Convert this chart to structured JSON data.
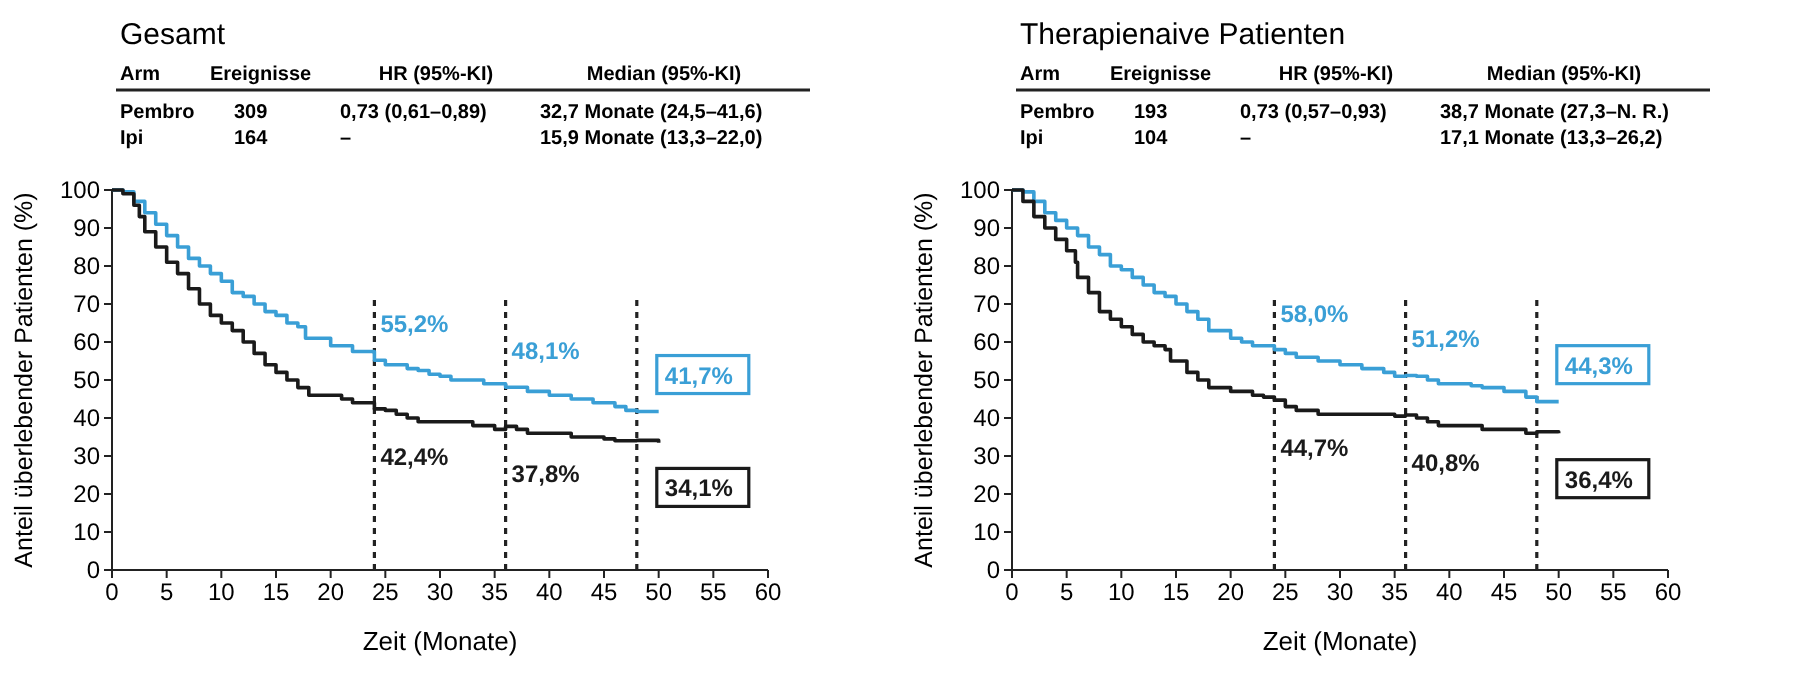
{
  "chart_data": [
    {
      "type": "step",
      "title": "Gesamt",
      "xlabel": "Zeit (Monate)",
      "ylabel": "Anteil überlebender Patienten (%)",
      "xlim": [
        0,
        60
      ],
      "xticks": [
        0,
        5,
        10,
        15,
        20,
        25,
        30,
        35,
        40,
        45,
        50,
        55,
        60
      ],
      "ylim": [
        0,
        100
      ],
      "yticks": [
        0,
        10,
        20,
        30,
        40,
        50,
        60,
        70,
        80,
        90,
        100
      ],
      "grid": false,
      "marker": "none",
      "line_style": "solid",
      "series": [
        {
          "color": "#3a9fd6",
          "x": [
            0,
            1,
            2,
            3,
            4,
            5,
            6,
            7,
            8,
            9,
            10,
            11,
            12,
            13,
            14,
            15,
            16,
            17,
            17.7,
            18,
            20,
            22,
            24,
            25,
            27,
            28,
            29,
            30,
            31,
            33,
            34,
            35,
            36,
            38,
            40,
            42,
            44,
            46,
            47,
            48,
            50
          ],
          "values": [
            100,
            99.5,
            97,
            94,
            91,
            88,
            85,
            82,
            80,
            78,
            76,
            73,
            72,
            70,
            68,
            67,
            65,
            64,
            61,
            61,
            59,
            57.5,
            55.2,
            54,
            53,
            52.5,
            51.5,
            51,
            50,
            50,
            49,
            49,
            48.1,
            47,
            46,
            45,
            44,
            43,
            42,
            41.7,
            41.7
          ]
        },
        {
          "color": "#1a1a1a",
          "x": [
            0,
            1,
            2,
            2.5,
            3,
            4,
            5,
            6,
            7,
            8,
            9,
            10,
            11,
            12,
            13,
            14,
            15,
            16,
            17,
            18,
            20,
            21,
            22,
            24,
            25,
            26,
            27,
            28,
            30,
            32,
            33,
            35,
            36,
            37,
            38,
            40,
            42,
            43,
            45,
            46,
            48,
            50
          ],
          "values": [
            100,
            99,
            96,
            93,
            89,
            85,
            81,
            78,
            74,
            70,
            67,
            65,
            63,
            60,
            57,
            54,
            52,
            50,
            48,
            46,
            46,
            45,
            44,
            42.4,
            42,
            41,
            40,
            39,
            39,
            39,
            38,
            37,
            37.8,
            37,
            36,
            36,
            35,
            35,
            34.5,
            34,
            34.1,
            33.5
          ]
        }
      ],
      "ref_lines": [
        {
          "axis": "x",
          "value": 24,
          "line_style": "dotted"
        },
        {
          "axis": "x",
          "value": 36,
          "line_style": "dotted"
        },
        {
          "axis": "x",
          "value": 48,
          "line_style": "dotted"
        }
      ],
      "annotations": [
        "Arm",
        "Ereignisse",
        "HR (95%-KI)",
        "Median (95%-KI)",
        "Pembro",
        "309",
        "0,73 (0,61–0,89)",
        "32,7 Monate (24,5–41,6)",
        "Ipi",
        "164",
        "–",
        "15,9 Monate (13,3–22,0)",
        {
          "text": "55,2%",
          "x": 24,
          "y": 55.2
        },
        {
          "text": "42,4%",
          "x": 24,
          "y": 42.4
        },
        {
          "text": "48,1%",
          "x": 36,
          "y": 48.1
        },
        {
          "text": "37,8%",
          "x": 36,
          "y": 37.8
        },
        {
          "text": "41,7%",
          "x": 48,
          "y": 41.7
        },
        {
          "text": "34,1%",
          "x": 48,
          "y": 34.1
        }
      ]
    },
    {
      "type": "step",
      "title": "Therapienaive Patienten",
      "xlabel": "Zeit (Monate)",
      "ylabel": "Anteil überlebender Patienten (%)",
      "xlim": [
        0,
        60
      ],
      "xticks": [
        0,
        5,
        10,
        15,
        20,
        25,
        30,
        35,
        40,
        45,
        50,
        55,
        60
      ],
      "ylim": [
        0,
        100
      ],
      "yticks": [
        0,
        10,
        20,
        30,
        40,
        50,
        60,
        70,
        80,
        90,
        100
      ],
      "grid": false,
      "marker": "none",
      "line_style": "solid",
      "series": [
        {
          "color": "#3a9fd6",
          "x": [
            0,
            1,
            2,
            3,
            4,
            5,
            6,
            7,
            8,
            9,
            10,
            11,
            12,
            13,
            14,
            15,
            16,
            17,
            18,
            20,
            21,
            22,
            24,
            25,
            26,
            28,
            30,
            32,
            34,
            35,
            36,
            37,
            38,
            39,
            42,
            43,
            45,
            47,
            48,
            50
          ],
          "values": [
            100,
            99.5,
            97,
            94,
            92,
            90,
            88,
            85,
            83,
            80,
            79,
            77,
            75,
            73,
            72,
            70,
            68,
            66,
            63,
            61,
            60,
            59,
            58,
            57,
            56,
            55,
            54,
            53,
            52,
            51,
            51.2,
            51,
            50,
            49,
            48.5,
            48,
            47,
            45.5,
            44.3,
            44.3
          ]
        },
        {
          "color": "#1a1a1a",
          "x": [
            0,
            1,
            2,
            3,
            4,
            5,
            5.8,
            6,
            7,
            8,
            9,
            10,
            11,
            12,
            13,
            14,
            14.5,
            16,
            17,
            18,
            20,
            22,
            23,
            24,
            25,
            26,
            28,
            30,
            33,
            35,
            36,
            37,
            38,
            39,
            42,
            43,
            46,
            47,
            48,
            50
          ],
          "values": [
            100,
            97,
            93,
            90,
            87,
            84,
            81,
            77,
            73,
            68,
            66,
            64,
            62,
            60,
            59,
            58,
            55,
            52,
            50,
            48,
            47,
            46,
            45.5,
            44.7,
            43,
            42,
            41,
            41,
            41,
            40.5,
            40.8,
            40,
            39,
            38,
            38,
            37,
            37,
            36,
            36.4,
            36
          ]
        }
      ],
      "ref_lines": [
        {
          "axis": "x",
          "value": 24,
          "line_style": "dotted"
        },
        {
          "axis": "x",
          "value": 36,
          "line_style": "dotted"
        },
        {
          "axis": "x",
          "value": 48,
          "line_style": "dotted"
        }
      ],
      "annotations": [
        "Arm",
        "Ereignisse",
        "HR (95%-KI)",
        "Median (95%-KI)",
        "Pembro",
        "193",
        "0,73 (0,57–0,93)",
        "38,7 Monate (27,3–N. R.)",
        "Ipi",
        "104",
        "–",
        "17,1 Monate (13,3–26,2)",
        {
          "text": "58,0%",
          "x": 24,
          "y": 58.0
        },
        {
          "text": "44,7%",
          "x": 24,
          "y": 44.7
        },
        {
          "text": "51,2%",
          "x": 36,
          "y": 51.2
        },
        {
          "text": "40,8%",
          "x": 36,
          "y": 40.8
        },
        {
          "text": "44,3%",
          "x": 48,
          "y": 44.3
        },
        {
          "text": "36,4%",
          "x": 48,
          "y": 36.4
        }
      ]
    }
  ]
}
